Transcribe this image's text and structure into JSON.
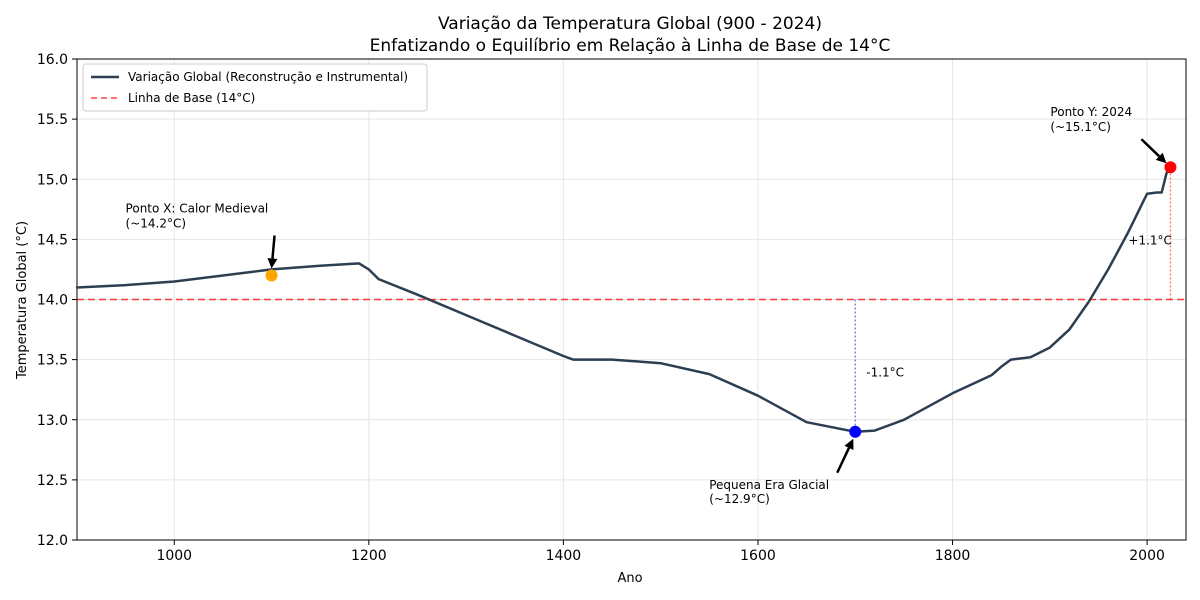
{
  "chart_data": {
    "type": "line",
    "title": "Variação da Temperatura Global (900 - 2024)",
    "subtitle": "Enfatizando o Equilíbrio em Relação à Linha de Base de 14°C",
    "xlabel": "Ano",
    "ylabel": "Temperatura Global (°C)",
    "xlim": [
      900,
      2040
    ],
    "ylim": [
      12.0,
      16.0
    ],
    "xticks": [
      1000,
      1200,
      1400,
      1600,
      1800,
      2000
    ],
    "yticks": [
      12.0,
      12.5,
      13.0,
      13.5,
      14.0,
      14.5,
      15.0,
      15.5,
      16.0
    ],
    "xtick_labels": [
      "1000",
      "1200",
      "1400",
      "1600",
      "1800",
      "2000"
    ],
    "ytick_labels": [
      "12.0",
      "12.5",
      "13.0",
      "13.5",
      "14.0",
      "14.5",
      "15.0",
      "15.5",
      "16.0"
    ],
    "grid": true,
    "legend_position": "top-left",
    "baseline": {
      "value": 14.0,
      "name": "Linha de Base (14°C)",
      "color": "#ff0000",
      "style": "dashed"
    },
    "series": [
      {
        "name": "Variação Global (Reconstrução e Instrumental)",
        "color": "#2c3e50",
        "x": [
          900,
          950,
          1000,
          1050,
          1100,
          1150,
          1190,
          1200,
          1210,
          1250,
          1300,
          1350,
          1400,
          1410,
          1450,
          1500,
          1550,
          1600,
          1650,
          1700,
          1720,
          1750,
          1800,
          1840,
          1850,
          1860,
          1880,
          1900,
          1920,
          1940,
          1960,
          1980,
          2000,
          2010,
          2015,
          2020,
          2024
        ],
        "values": [
          14.1,
          14.12,
          14.15,
          14.2,
          14.25,
          14.28,
          14.3,
          14.25,
          14.17,
          14.04,
          13.87,
          13.7,
          13.53,
          13.5,
          13.5,
          13.47,
          13.38,
          13.2,
          12.98,
          12.9,
          12.91,
          13.0,
          13.22,
          13.37,
          13.44,
          13.5,
          13.52,
          13.6,
          13.75,
          13.98,
          14.25,
          14.55,
          14.88,
          14.89,
          14.89,
          15.05,
          15.1
        ]
      }
    ],
    "highlight_points": [
      {
        "name": "Ponto X",
        "x": 1100,
        "y": 14.2,
        "color": "#ffa500",
        "label_line1": "Ponto X: Calor Medieval",
        "label_line2": "(~14.2°C)"
      },
      {
        "name": "Pequena Era Glacial",
        "x": 1700,
        "y": 12.9,
        "color": "#0000ff",
        "label_line1": "Pequena Era Glacial",
        "label_line2": "(~12.9°C)"
      },
      {
        "name": "Ponto Y",
        "x": 2024,
        "y": 15.1,
        "color": "#ff0000",
        "label_line1": "Ponto Y: 2024",
        "label_line2": "(~15.1°C)"
      }
    ],
    "deviations": [
      {
        "x": 1700,
        "from": 14.0,
        "to": 12.9,
        "label": "-1.1°C",
        "color": "#0000ff"
      },
      {
        "x": 2024,
        "from": 14.0,
        "to": 15.1,
        "label": "+1.1°C",
        "color": "#ff0000"
      }
    ]
  }
}
